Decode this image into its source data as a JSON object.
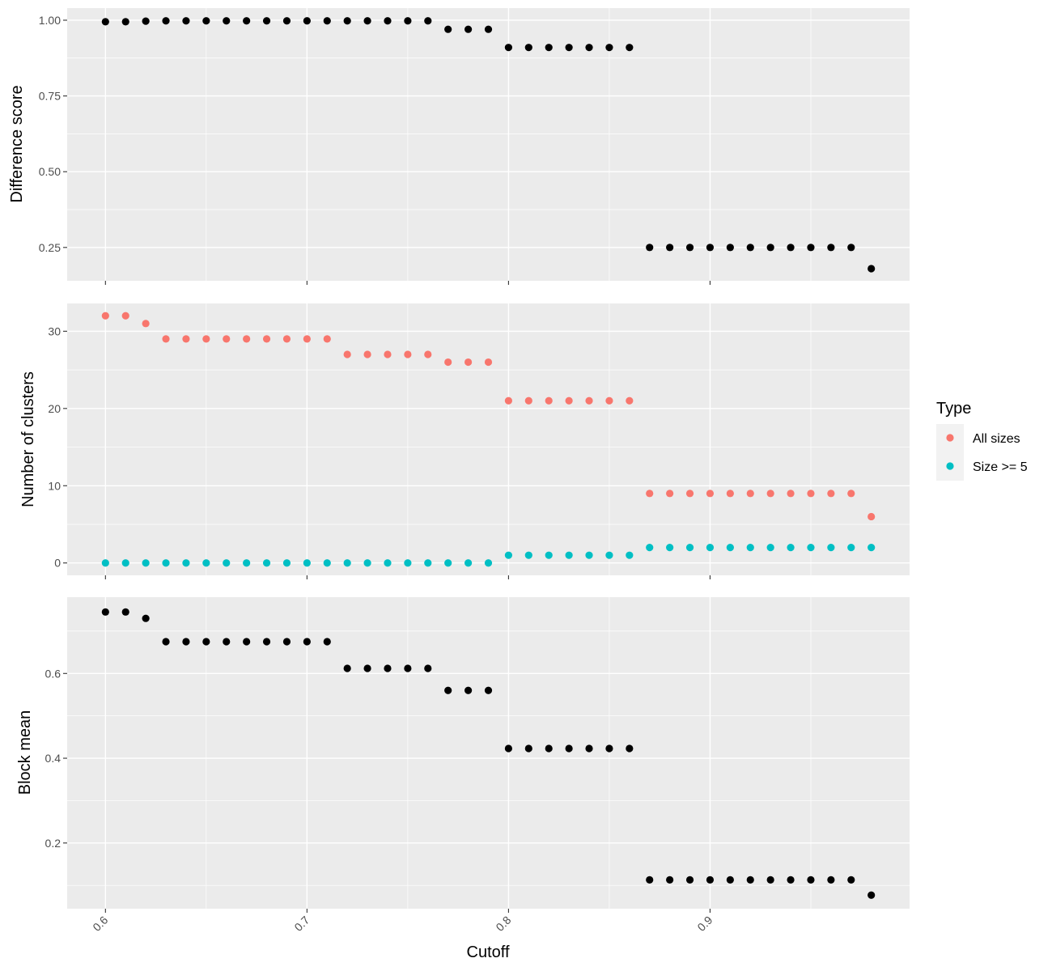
{
  "chart_data": [
    {
      "type": "scatter",
      "panel": "top",
      "ylabel": "Difference score",
      "ylim": [
        0.14,
        1.04
      ],
      "yticks": [
        0.25,
        0.5,
        0.75,
        1.0
      ],
      "ytick_labels": [
        "0.25",
        "0.50",
        "0.75",
        "1.00"
      ],
      "grid": true,
      "series": [
        {
          "color": "#000000",
          "x": [
            0.6,
            0.61,
            0.62,
            0.63,
            0.64,
            0.65,
            0.66,
            0.67,
            0.68,
            0.69,
            0.7,
            0.71,
            0.72,
            0.73,
            0.74,
            0.75,
            0.76,
            0.77,
            0.78,
            0.79,
            0.8,
            0.81,
            0.82,
            0.83,
            0.84,
            0.85,
            0.86,
            0.87,
            0.88,
            0.89,
            0.9,
            0.91,
            0.92,
            0.93,
            0.94,
            0.95,
            0.96,
            0.97,
            0.98
          ],
          "y": [
            0.995,
            0.995,
            0.997,
            0.998,
            0.998,
            0.998,
            0.998,
            0.998,
            0.998,
            0.998,
            0.998,
            0.998,
            0.998,
            0.998,
            0.998,
            0.998,
            0.998,
            0.97,
            0.97,
            0.97,
            0.91,
            0.91,
            0.91,
            0.91,
            0.91,
            0.91,
            0.91,
            0.25,
            0.25,
            0.25,
            0.25,
            0.25,
            0.25,
            0.25,
            0.25,
            0.25,
            0.25,
            0.25,
            0.18
          ]
        }
      ]
    },
    {
      "type": "scatter",
      "panel": "middle",
      "ylabel": "Number of clusters",
      "ylim": [
        -1.6,
        33.6
      ],
      "yticks": [
        0,
        10,
        20,
        30
      ],
      "ytick_labels": [
        "0",
        "10",
        "20",
        "30"
      ],
      "grid": true,
      "series": [
        {
          "name": "All sizes",
          "color": "#f8766d",
          "x": [
            0.6,
            0.61,
            0.62,
            0.63,
            0.64,
            0.65,
            0.66,
            0.67,
            0.68,
            0.69,
            0.7,
            0.71,
            0.72,
            0.73,
            0.74,
            0.75,
            0.76,
            0.77,
            0.78,
            0.79,
            0.8,
            0.81,
            0.82,
            0.83,
            0.84,
            0.85,
            0.86,
            0.87,
            0.88,
            0.89,
            0.9,
            0.91,
            0.92,
            0.93,
            0.94,
            0.95,
            0.96,
            0.97,
            0.98
          ],
          "y": [
            32,
            32,
            31,
            29,
            29,
            29,
            29,
            29,
            29,
            29,
            29,
            29,
            27,
            27,
            27,
            27,
            27,
            26,
            26,
            26,
            21,
            21,
            21,
            21,
            21,
            21,
            21,
            9,
            9,
            9,
            9,
            9,
            9,
            9,
            9,
            9,
            9,
            9,
            6
          ]
        },
        {
          "name": "Size >= 5",
          "color": "#00bfc4",
          "x": [
            0.6,
            0.61,
            0.62,
            0.63,
            0.64,
            0.65,
            0.66,
            0.67,
            0.68,
            0.69,
            0.7,
            0.71,
            0.72,
            0.73,
            0.74,
            0.75,
            0.76,
            0.77,
            0.78,
            0.79,
            0.8,
            0.81,
            0.82,
            0.83,
            0.84,
            0.85,
            0.86,
            0.87,
            0.88,
            0.89,
            0.9,
            0.91,
            0.92,
            0.93,
            0.94,
            0.95,
            0.96,
            0.97,
            0.98
          ],
          "y": [
            0,
            0,
            0,
            0,
            0,
            0,
            0,
            0,
            0,
            0,
            0,
            0,
            0,
            0,
            0,
            0,
            0,
            0,
            0,
            0,
            1,
            1,
            1,
            1,
            1,
            1,
            1,
            2,
            2,
            2,
            2,
            2,
            2,
            2,
            2,
            2,
            2,
            2,
            2
          ]
        }
      ]
    },
    {
      "type": "scatter",
      "panel": "bottom",
      "ylabel": "Block mean",
      "xlabel": "Cutoff",
      "ylim": [
        0.045,
        0.78
      ],
      "yticks": [
        0.2,
        0.4,
        0.6
      ],
      "ytick_labels": [
        "0.2",
        "0.4",
        "0.6"
      ],
      "grid": true,
      "series": [
        {
          "color": "#000000",
          "x": [
            0.6,
            0.61,
            0.62,
            0.63,
            0.64,
            0.65,
            0.66,
            0.67,
            0.68,
            0.69,
            0.7,
            0.71,
            0.72,
            0.73,
            0.74,
            0.75,
            0.76,
            0.77,
            0.78,
            0.79,
            0.8,
            0.81,
            0.82,
            0.83,
            0.84,
            0.85,
            0.86,
            0.87,
            0.88,
            0.89,
            0.9,
            0.91,
            0.92,
            0.93,
            0.94,
            0.95,
            0.96,
            0.97,
            0.98
          ],
          "y": [
            0.745,
            0.745,
            0.73,
            0.675,
            0.675,
            0.675,
            0.675,
            0.675,
            0.675,
            0.675,
            0.675,
            0.675,
            0.612,
            0.612,
            0.612,
            0.612,
            0.612,
            0.56,
            0.56,
            0.56,
            0.423,
            0.423,
            0.423,
            0.423,
            0.423,
            0.423,
            0.423,
            0.113,
            0.113,
            0.113,
            0.113,
            0.113,
            0.113,
            0.113,
            0.113,
            0.113,
            0.113,
            0.113,
            0.077
          ]
        }
      ]
    }
  ],
  "shared_x": {
    "xlim": [
      0.581,
      0.999
    ],
    "xticks": [
      0.6,
      0.7,
      0.8,
      0.9
    ],
    "xtick_labels": [
      "0.6",
      "0.7",
      "0.8",
      "0.9"
    ],
    "xlabel": "Cutoff"
  },
  "legend": {
    "title": "Type",
    "placement": "right",
    "items": [
      {
        "label": "All sizes",
        "color": "#f8766d"
      },
      {
        "label": "Size >= 5",
        "color": "#00bfc4"
      }
    ]
  },
  "colors": {
    "panel_background": "#ebebeb",
    "grid": "#ffffff",
    "tick": "#333333"
  }
}
